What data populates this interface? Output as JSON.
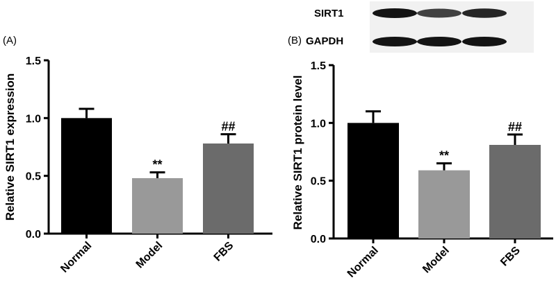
{
  "chart_data": [
    {
      "panel": "(A)",
      "type": "bar",
      "ylabel": "Relative SIRT1 expression",
      "categories": [
        "Normal",
        "Model",
        "FBS"
      ],
      "values": [
        1.0,
        0.48,
        0.78
      ],
      "errors": [
        0.08,
        0.05,
        0.08
      ],
      "annotations": [
        "",
        "**",
        "##"
      ],
      "bar_colors": [
        "#000000",
        "#999999",
        "#6b6b6b"
      ],
      "ylim": [
        0,
        1.5
      ],
      "yticks": [
        0.0,
        0.5,
        1.0,
        1.5
      ],
      "ytick_labels": [
        "0.0",
        "0.5",
        "1.0",
        "1.5"
      ]
    },
    {
      "panel": "(B)",
      "type": "bar",
      "ylabel": "Relative SIRT1 protein level",
      "categories": [
        "Normal",
        "Model",
        "FBS"
      ],
      "values": [
        1.0,
        0.59,
        0.81
      ],
      "errors": [
        0.1,
        0.06,
        0.09
      ],
      "annotations": [
        "",
        "**",
        "##"
      ],
      "bar_colors": [
        "#000000",
        "#999999",
        "#6b6b6b"
      ],
      "ylim": [
        0,
        1.5
      ],
      "yticks": [
        0.0,
        0.5,
        1.0,
        1.5
      ],
      "ytick_labels": [
        "0.0",
        "0.5",
        "1.0",
        "1.5"
      ]
    }
  ],
  "blot": {
    "labels": [
      "SIRT1",
      "GAPDH"
    ],
    "band_intensity": [
      [
        1.0,
        0.75,
        0.9
      ],
      [
        1.0,
        1.0,
        1.0
      ]
    ]
  }
}
